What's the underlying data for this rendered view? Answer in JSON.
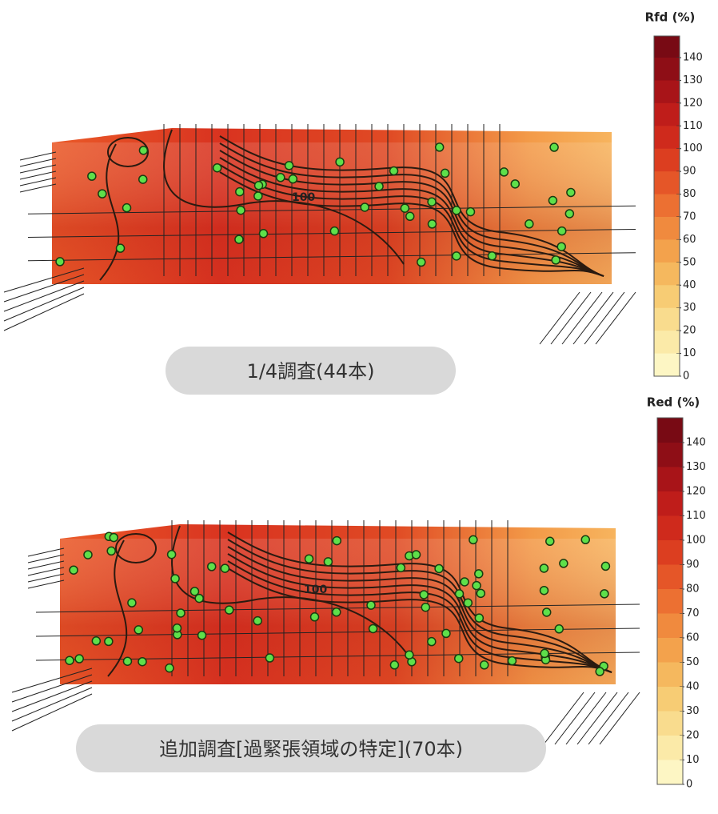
{
  "panels": [
    {
      "colorbar": {
        "title": "Rfd (%)",
        "ticks": [
          "140",
          "130",
          "120",
          "110",
          "100",
          "90",
          "80",
          "70",
          "60",
          "50",
          "40",
          "30",
          "20",
          "10",
          "0"
        ]
      },
      "contour_label": "100",
      "caption": "1/4調査(44本)"
    },
    {
      "colorbar": {
        "title": "Red (%)",
        "ticks": [
          "140",
          "130",
          "120",
          "110",
          "100",
          "90",
          "80",
          "70",
          "60",
          "50",
          "40",
          "30",
          "20",
          "10",
          "0"
        ]
      },
      "contour_label": "100",
      "caption": "追加調査[過緊張領域の特定](70本)"
    }
  ]
}
